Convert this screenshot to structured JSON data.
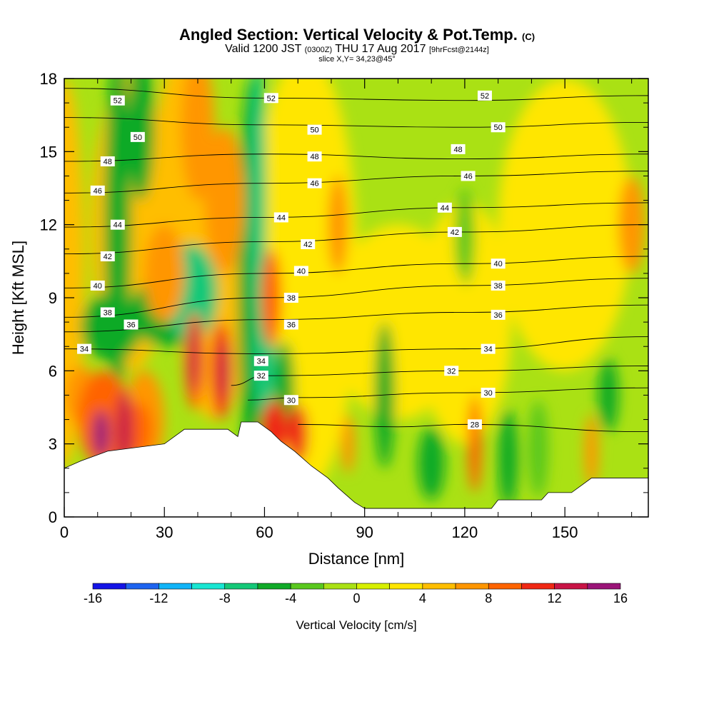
{
  "title": {
    "main": "Angled Section: Vertical Velocity & Pot.Temp.",
    "copyright": "(C)",
    "valid_prefix": "Valid 1200 JST",
    "valid_utc": "(0300Z)",
    "valid_date": "THU 17 Aug 2017",
    "forecast": "[9hrFcst@2144z]",
    "slice": "slice X,Y= 34,23@45°"
  },
  "chart_data": {
    "type": "heatmap",
    "xlabel": "Distance [nm]",
    "ylabel": "Height [Kft MSL]",
    "xlim": [
      0,
      175
    ],
    "ylim": [
      0,
      18
    ],
    "xticks": [
      "0",
      "30",
      "60",
      "90",
      "120",
      "150"
    ],
    "yticks": [
      "0",
      "3",
      "6",
      "9",
      "12",
      "15",
      "18"
    ],
    "colorbar": {
      "label": "Vertical Velocity [cm/s]",
      "ticks": [
        "-16",
        "-12",
        "-8",
        "-4",
        "0",
        "4",
        "8",
        "12",
        "16"
      ],
      "levels": [
        -16,
        -14,
        -12,
        -10,
        -8,
        -6,
        -4,
        -2,
        0,
        2,
        4,
        6,
        8,
        10,
        12,
        14,
        16
      ],
      "colors": [
        "#1414e6",
        "#1e64f0",
        "#10b4f8",
        "#18e6d2",
        "#14c878",
        "#10aa28",
        "#5ac81e",
        "#aae114",
        "#d7f000",
        "#ffe600",
        "#ffbe00",
        "#ff9600",
        "#ff6400",
        "#f02814",
        "#c81446",
        "#9a1478"
      ]
    },
    "terrain_top_kft": [
      [
        0,
        2.0
      ],
      [
        5,
        2.3
      ],
      [
        13,
        2.7
      ],
      [
        30,
        3.0
      ],
      [
        33,
        3.3
      ],
      [
        36,
        3.6
      ],
      [
        43,
        3.6
      ],
      [
        49,
        3.6
      ],
      [
        52,
        3.3
      ],
      [
        53,
        3.9
      ],
      [
        58,
        3.9
      ],
      [
        62,
        3.5
      ],
      [
        65,
        3.1
      ],
      [
        69,
        2.7
      ],
      [
        74,
        2.1
      ],
      [
        79,
        1.6
      ],
      [
        82,
        1.2
      ],
      [
        87,
        0.6
      ],
      [
        90,
        0.35
      ],
      [
        128,
        0.35
      ],
      [
        130,
        0.7
      ],
      [
        143,
        0.7
      ],
      [
        145,
        1.0
      ],
      [
        152,
        1.0
      ],
      [
        155,
        1.3
      ],
      [
        158,
        1.6
      ],
      [
        175,
        1.6
      ]
    ],
    "theta_contours": [
      {
        "label": "52",
        "points": [
          [
            0,
            17.6
          ],
          [
            60,
            17.2
          ],
          [
            120,
            17.1
          ],
          [
            175,
            17.3
          ]
        ],
        "label_at": [
          [
            16,
            17.1
          ],
          [
            62,
            17.2
          ],
          [
            126,
            17.3
          ]
        ]
      },
      {
        "label": "50",
        "points": [
          [
            0,
            16.4
          ],
          [
            60,
            16.1
          ],
          [
            120,
            16.0
          ],
          [
            175,
            16.2
          ]
        ],
        "label_at": [
          [
            22,
            15.6
          ],
          [
            75,
            15.9
          ],
          [
            130,
            16.0
          ]
        ]
      },
      {
        "label": "48",
        "points": [
          [
            0,
            14.6
          ],
          [
            60,
            14.9
          ],
          [
            120,
            14.7
          ],
          [
            175,
            14.9
          ]
        ],
        "label_at": [
          [
            13,
            14.6
          ],
          [
            75,
            14.8
          ],
          [
            118,
            15.1
          ]
        ]
      },
      {
        "label": "46",
        "points": [
          [
            0,
            13.3
          ],
          [
            60,
            13.7
          ],
          [
            120,
            14.0
          ],
          [
            175,
            14.2
          ]
        ],
        "label_at": [
          [
            10,
            13.4
          ],
          [
            75,
            13.7
          ],
          [
            121,
            14.0
          ]
        ]
      },
      {
        "label": "44",
        "points": [
          [
            0,
            11.9
          ],
          [
            60,
            12.3
          ],
          [
            120,
            12.7
          ],
          [
            175,
            12.9
          ]
        ],
        "label_at": [
          [
            16,
            12.0
          ],
          [
            65,
            12.3
          ],
          [
            114,
            12.7
          ]
        ]
      },
      {
        "label": "42",
        "points": [
          [
            0,
            10.8
          ],
          [
            60,
            11.3
          ],
          [
            120,
            11.7
          ],
          [
            175,
            12.0
          ]
        ],
        "label_at": [
          [
            13,
            10.7
          ],
          [
            73,
            11.2
          ],
          [
            117,
            11.7
          ]
        ]
      },
      {
        "label": "40",
        "points": [
          [
            0,
            9.4
          ],
          [
            60,
            10.0
          ],
          [
            120,
            10.4
          ],
          [
            175,
            10.7
          ]
        ],
        "label_at": [
          [
            10,
            9.5
          ],
          [
            71,
            10.1
          ],
          [
            130,
            10.4
          ]
        ]
      },
      {
        "label": "38",
        "points": [
          [
            0,
            8.2
          ],
          [
            60,
            9.0
          ],
          [
            120,
            9.5
          ],
          [
            175,
            9.8
          ]
        ],
        "label_at": [
          [
            13,
            8.4
          ],
          [
            68,
            9.0
          ],
          [
            130,
            9.5
          ]
        ]
      },
      {
        "label": "36",
        "points": [
          [
            0,
            7.6
          ],
          [
            60,
            8.1
          ],
          [
            120,
            8.4
          ],
          [
            175,
            8.7
          ]
        ],
        "label_at": [
          [
            20,
            7.9
          ],
          [
            68,
            7.9
          ],
          [
            130,
            8.3
          ]
        ]
      },
      {
        "label": "34",
        "points": [
          [
            0,
            6.9
          ],
          [
            60,
            6.7
          ],
          [
            120,
            6.9
          ],
          [
            175,
            7.4
          ]
        ],
        "label_at": [
          [
            6,
            6.9
          ],
          [
            59,
            6.4
          ],
          [
            127,
            6.9
          ]
        ]
      },
      {
        "label": "32",
        "points": [
          [
            50,
            5.4
          ],
          [
            60,
            5.8
          ],
          [
            120,
            6.0
          ],
          [
            175,
            6.2
          ]
        ],
        "label_at": [
          [
            59,
            5.8
          ],
          [
            116,
            6.0
          ]
        ]
      },
      {
        "label": "30",
        "points": [
          [
            55,
            4.8
          ],
          [
            70,
            4.9
          ],
          [
            120,
            5.1
          ],
          [
            175,
            5.3
          ]
        ],
        "label_at": [
          [
            68,
            4.8
          ],
          [
            127,
            5.1
          ]
        ]
      },
      {
        "label": "28",
        "points": [
          [
            70,
            3.8
          ],
          [
            100,
            3.7
          ],
          [
            120,
            3.8
          ],
          [
            175,
            3.5
          ]
        ],
        "label_at": [
          [
            123,
            3.8
          ]
        ]
      }
    ]
  }
}
